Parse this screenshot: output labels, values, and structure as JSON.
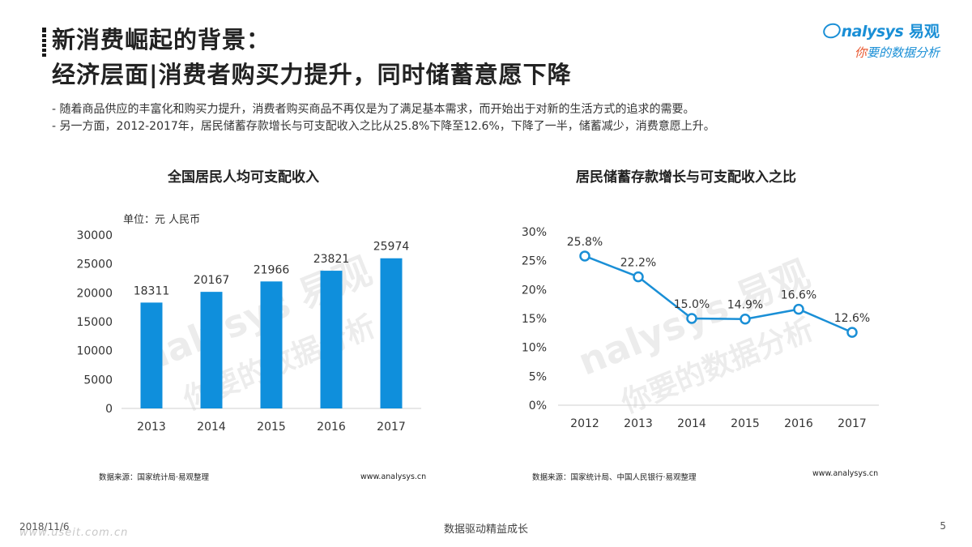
{
  "header": {
    "title_line1": "新消费崛起的背景：",
    "title_line2": "经济层面|消费者购买力提升，同时储蓄意愿下降"
  },
  "logo": {
    "brand_en": "nalysys",
    "brand_cn": "易观",
    "tagline_highlight": "你",
    "tagline_rest": "要的数据分析"
  },
  "bullets": [
    "-  随着商品供应的丰富化和购买力提升，消费者购买商品不再仅是为了满足基本需求，而开始出于对新的生活方式的追求的需要。",
    "-  另一方面，2012-2017年，居民储蓄存款增长与可支配收入之比从25.8%下降至12.6%，下降了一半，储蓄减少，消费意愿上升。"
  ],
  "watermark": {
    "en": "nalysys 易观",
    "cn": "你要的数据分析"
  },
  "chart_data": [
    {
      "type": "bar",
      "title": "全国居民人均可支配收入",
      "unit_label": "单位：元 人民币",
      "categories": [
        "2013",
        "2014",
        "2015",
        "2016",
        "2017"
      ],
      "values": [
        18311,
        20167,
        21966,
        23821,
        25974
      ],
      "data_labels": [
        "18311",
        "20167",
        "21966",
        "23821",
        "25974"
      ],
      "y_ticks": [
        "0",
        "5000",
        "10000",
        "15000",
        "20000",
        "25000",
        "30000"
      ],
      "ylim": [
        0,
        30000
      ],
      "bar_color": "#0f8fdc",
      "source": "数据来源：国家统计局·易观整理",
      "url": "www.analysys.cn"
    },
    {
      "type": "line",
      "title": "居民储蓄存款增长与可支配收入之比",
      "categories": [
        "2012",
        "2013",
        "2014",
        "2015",
        "2016",
        "2017"
      ],
      "values": [
        25.8,
        22.2,
        15.0,
        14.9,
        16.6,
        12.6
      ],
      "data_labels": [
        "25.8%",
        "22.2%",
        "15.0%",
        "14.9%",
        "16.6%",
        "12.6%"
      ],
      "y_ticks": [
        "0%",
        "5%",
        "10%",
        "15%",
        "20%",
        "25%",
        "30%"
      ],
      "ylim": [
        0,
        30
      ],
      "line_color": "#1a8fd6",
      "source": "数据来源：国家统计局、中国人民银行·易观整理",
      "url": "www.analysys.cn"
    }
  ],
  "footer": {
    "date": "2018/11/6",
    "watermark_site": "www.useit.com.cn",
    "center": "数据驱动精益成长",
    "page": "5"
  }
}
